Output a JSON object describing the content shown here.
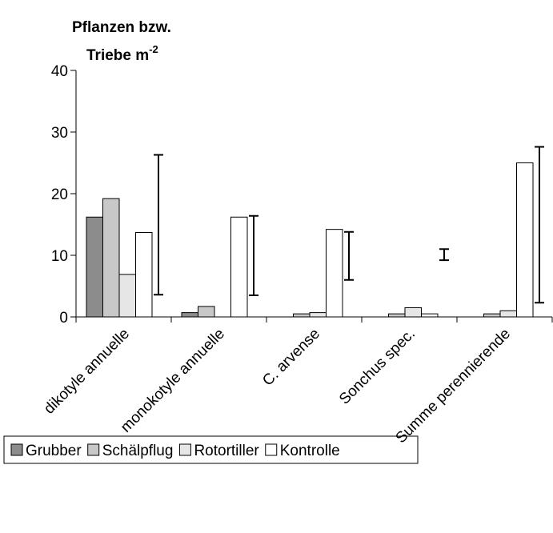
{
  "chart_data": {
    "type": "bar",
    "y_label": [
      "Pflanzen bzw.",
      "Triebe m"
    ],
    "y_label_sup": "-2",
    "categories": [
      "dikotyle annuelle",
      "monokotyle annuelle",
      "C. arvense",
      "Sonchus spec.",
      "Summe perennierende"
    ],
    "series": [
      {
        "name": "Grubber",
        "color": "#8c8c8c",
        "values": [
          16.2,
          0.7,
          0,
          0,
          0
        ]
      },
      {
        "name": "Schälpflug",
        "color": "#c8c8c8",
        "values": [
          19.2,
          1.7,
          0.5,
          0.5,
          0.5
        ]
      },
      {
        "name": "Rotortiller",
        "color": "#e6e6e6",
        "values": [
          6.9,
          0,
          0.7,
          1.5,
          1.0
        ]
      },
      {
        "name": "Kontrolle",
        "color": "#ffffff",
        "values": [
          13.7,
          16.2,
          14.2,
          0.5,
          25
        ]
      }
    ],
    "error_bars": [
      [
        3.6,
        26.3
      ],
      [
        3.5,
        16.4
      ],
      [
        6,
        13.8
      ],
      [
        9.2,
        11
      ],
      [
        2.3,
        27.6
      ]
    ],
    "ylim": [
      0,
      40
    ],
    "yticks": [
      0,
      10,
      20,
      30,
      40
    ],
    "grid": false,
    "legend": "bottom"
  }
}
